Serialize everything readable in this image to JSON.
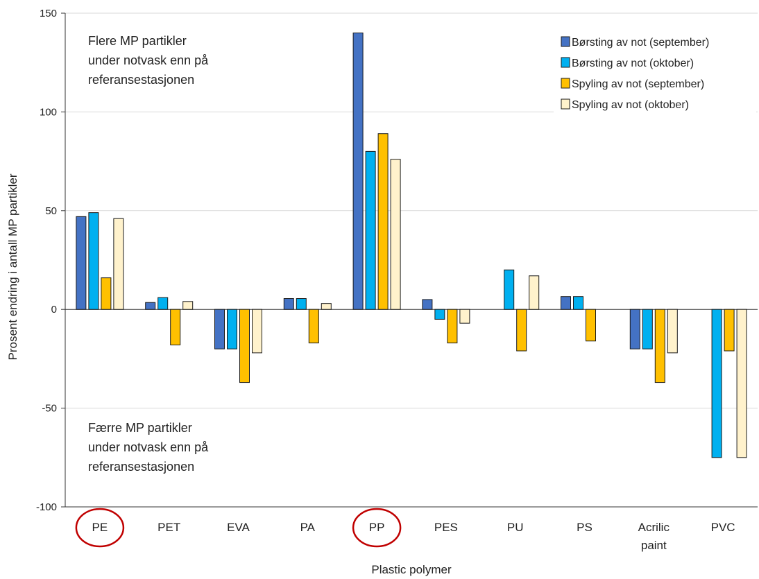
{
  "chart_data": {
    "type": "bar",
    "categories": [
      "PE",
      "PET",
      "EVA",
      "PA",
      "PP",
      "PES",
      "PU",
      "PS",
      "Acrilic paint",
      "PVC"
    ],
    "highlighted_categories": [
      "PE",
      "PP"
    ],
    "series": [
      {
        "name": "Børsting av not (september)",
        "color": "#4472C4",
        "values": [
          47,
          3.5,
          -20,
          5.5,
          140,
          5,
          null,
          6.5,
          -20,
          null
        ]
      },
      {
        "name": "Børsting av not (oktober)",
        "color": "#00B0F0",
        "values": [
          49,
          6,
          -20,
          5.5,
          80,
          -5,
          20,
          6.5,
          -20,
          -75
        ]
      },
      {
        "name": "Spyling av not (september)",
        "color": "#FFC000",
        "values": [
          16,
          -18,
          -37,
          -17,
          89,
          -17,
          -21,
          -16,
          -37,
          -21
        ]
      },
      {
        "name": "Spyling av not (oktober)",
        "color": "#FFF2CC",
        "values": [
          46,
          4,
          -22,
          3,
          76,
          -7,
          17,
          null,
          -22,
          -75
        ]
      }
    ],
    "xlabel": "Plastic polymer",
    "ylabel": "Prosent endring i antall MP partikler",
    "ylim": [
      -100,
      150
    ],
    "yticks": [
      -100,
      -50,
      0,
      50,
      100,
      150
    ],
    "grid": true,
    "legend_position": "top-right",
    "highlight_color": "#C00000",
    "annotations": {
      "top": [
        "Flere MP partikler",
        "under notvask enn på",
        "referansestasjonen"
      ],
      "bottom": [
        "Færre MP partikler",
        "under notvask enn på",
        "referansestasjonen"
      ]
    }
  }
}
